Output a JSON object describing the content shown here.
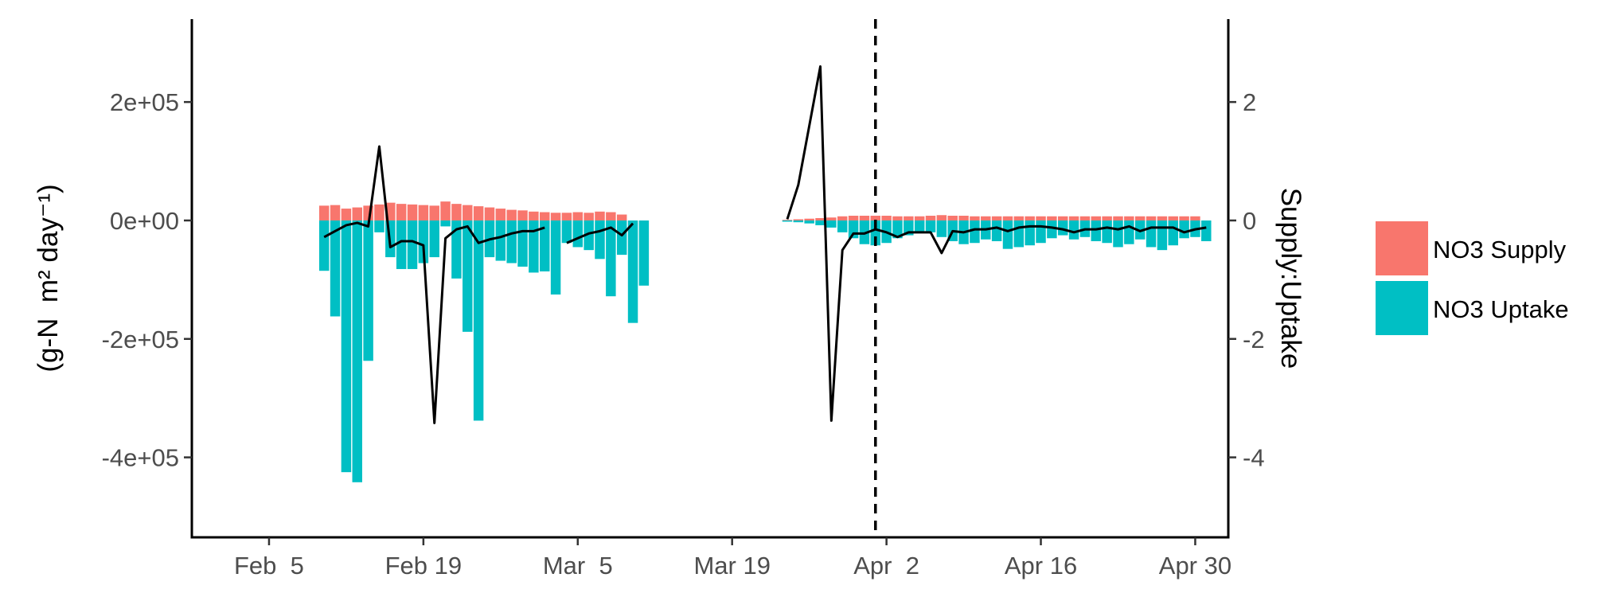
{
  "chart_data": {
    "type": "bar",
    "title": "",
    "ylabel_left": "(g-N  m² day⁻¹)",
    "ylabel_right": "Supply:Uptake",
    "x_axis": {
      "kind": "date",
      "year": 2025,
      "range": [
        "2025-01-29",
        "2025-05-03"
      ],
      "ticks": [
        {
          "date": "2025-02-05",
          "label": "Feb  5"
        },
        {
          "date": "2025-02-19",
          "label": "Feb 19"
        },
        {
          "date": "2025-03-05",
          "label": "Mar  5"
        },
        {
          "date": "2025-03-19",
          "label": "Mar 19"
        },
        {
          "date": "2025-04-02",
          "label": "Apr  2"
        },
        {
          "date": "2025-04-16",
          "label": "Apr 16"
        },
        {
          "date": "2025-04-30",
          "label": "Apr 30"
        }
      ]
    },
    "y_left": {
      "range": [
        -535000,
        340000
      ],
      "ticks": [
        {
          "value": 200000,
          "label": "2e+05"
        },
        {
          "value": 0,
          "label": "0e+00"
        },
        {
          "value": -200000,
          "label": "-2e+05"
        },
        {
          "value": -400000,
          "label": "-4e+05"
        }
      ]
    },
    "y_right": {
      "range": [
        -5.35,
        3.4
      ],
      "ticks": [
        {
          "value": 2,
          "label": "2"
        },
        {
          "value": 0,
          "label": "0"
        },
        {
          "value": -2,
          "label": "-2"
        },
        {
          "value": -4,
          "label": "-4"
        }
      ]
    },
    "vline_date": "2025-04-01",
    "grid": false,
    "legend": {
      "position": "right"
    },
    "series": [
      {
        "name": "NO3 Supply",
        "color": "#F8766D",
        "axis": "left",
        "kind": "bar",
        "points": [
          {
            "x": "2025-02-10",
            "y": 25000
          },
          {
            "x": "2025-02-11",
            "y": 26000
          },
          {
            "x": "2025-02-12",
            "y": 20000
          },
          {
            "x": "2025-02-13",
            "y": 22000
          },
          {
            "x": "2025-02-14",
            "y": 25000
          },
          {
            "x": "2025-02-15",
            "y": 27000
          },
          {
            "x": "2025-02-16",
            "y": 30000
          },
          {
            "x": "2025-02-17",
            "y": 28000
          },
          {
            "x": "2025-02-18",
            "y": 27000
          },
          {
            "x": "2025-02-19",
            "y": 26000
          },
          {
            "x": "2025-02-20",
            "y": 25000
          },
          {
            "x": "2025-02-21",
            "y": 32000
          },
          {
            "x": "2025-02-22",
            "y": 28000
          },
          {
            "x": "2025-02-23",
            "y": 26000
          },
          {
            "x": "2025-02-24",
            "y": 24000
          },
          {
            "x": "2025-02-25",
            "y": 22000
          },
          {
            "x": "2025-02-26",
            "y": 20000
          },
          {
            "x": "2025-02-27",
            "y": 18000
          },
          {
            "x": "2025-02-28",
            "y": 17000
          },
          {
            "x": "2025-03-01",
            "y": 15000
          },
          {
            "x": "2025-03-02",
            "y": 14000
          },
          {
            "x": "2025-03-03",
            "y": 13000
          },
          {
            "x": "2025-03-04",
            "y": 13000
          },
          {
            "x": "2025-03-05",
            "y": 14000
          },
          {
            "x": "2025-03-06",
            "y": 13000
          },
          {
            "x": "2025-03-07",
            "y": 15000
          },
          {
            "x": "2025-03-08",
            "y": 14000
          },
          {
            "x": "2025-03-09",
            "y": 10000
          },
          {
            "x": "2025-03-24",
            "y": 1000
          },
          {
            "x": "2025-03-25",
            "y": 2000
          },
          {
            "x": "2025-03-26",
            "y": 3000
          },
          {
            "x": "2025-03-27",
            "y": 4000
          },
          {
            "x": "2025-03-28",
            "y": 5000
          },
          {
            "x": "2025-03-29",
            "y": 7000
          },
          {
            "x": "2025-03-30",
            "y": 8000
          },
          {
            "x": "2025-03-31",
            "y": 8000
          },
          {
            "x": "2025-04-01",
            "y": 8000
          },
          {
            "x": "2025-04-02",
            "y": 8000
          },
          {
            "x": "2025-04-03",
            "y": 7000
          },
          {
            "x": "2025-04-04",
            "y": 7000
          },
          {
            "x": "2025-04-05",
            "y": 7000
          },
          {
            "x": "2025-04-06",
            "y": 8000
          },
          {
            "x": "2025-04-07",
            "y": 9000
          },
          {
            "x": "2025-04-08",
            "y": 8000
          },
          {
            "x": "2025-04-09",
            "y": 8000
          },
          {
            "x": "2025-04-10",
            "y": 7000
          },
          {
            "x": "2025-04-11",
            "y": 7000
          },
          {
            "x": "2025-04-12",
            "y": 7000
          },
          {
            "x": "2025-04-13",
            "y": 7000
          },
          {
            "x": "2025-04-14",
            "y": 7000
          },
          {
            "x": "2025-04-15",
            "y": 7000
          },
          {
            "x": "2025-04-16",
            "y": 7000
          },
          {
            "x": "2025-04-17",
            "y": 7000
          },
          {
            "x": "2025-04-18",
            "y": 7000
          },
          {
            "x": "2025-04-19",
            "y": 7000
          },
          {
            "x": "2025-04-20",
            "y": 7000
          },
          {
            "x": "2025-04-21",
            "y": 7000
          },
          {
            "x": "2025-04-22",
            "y": 7000
          },
          {
            "x": "2025-04-23",
            "y": 7000
          },
          {
            "x": "2025-04-24",
            "y": 7000
          },
          {
            "x": "2025-04-25",
            "y": 7000
          },
          {
            "x": "2025-04-26",
            "y": 7000
          },
          {
            "x": "2025-04-27",
            "y": 7000
          },
          {
            "x": "2025-04-28",
            "y": 7000
          },
          {
            "x": "2025-04-29",
            "y": 7000
          },
          {
            "x": "2025-04-30",
            "y": 7000
          }
        ]
      },
      {
        "name": "NO3 Uptake",
        "color": "#00BFC4",
        "axis": "left",
        "kind": "bar",
        "points": [
          {
            "x": "2025-02-10",
            "y": -85000
          },
          {
            "x": "2025-02-11",
            "y": -162000
          },
          {
            "x": "2025-02-12",
            "y": -425000
          },
          {
            "x": "2025-02-13",
            "y": -442000
          },
          {
            "x": "2025-02-14",
            "y": -237000
          },
          {
            "x": "2025-02-15",
            "y": -20000
          },
          {
            "x": "2025-02-16",
            "y": -62000
          },
          {
            "x": "2025-02-17",
            "y": -82000
          },
          {
            "x": "2025-02-18",
            "y": -82000
          },
          {
            "x": "2025-02-19",
            "y": -72000
          },
          {
            "x": "2025-02-20",
            "y": -62000
          },
          {
            "x": "2025-02-21",
            "y": -10000
          },
          {
            "x": "2025-02-22",
            "y": -98000
          },
          {
            "x": "2025-02-23",
            "y": -188000
          },
          {
            "x": "2025-02-24",
            "y": -338000
          },
          {
            "x": "2025-02-25",
            "y": -62000
          },
          {
            "x": "2025-02-26",
            "y": -68000
          },
          {
            "x": "2025-02-27",
            "y": -72000
          },
          {
            "x": "2025-02-28",
            "y": -78000
          },
          {
            "x": "2025-03-01",
            "y": -88000
          },
          {
            "x": "2025-03-02",
            "y": -86000
          },
          {
            "x": "2025-03-03",
            "y": -125000
          },
          {
            "x": "2025-03-04",
            "y": -38000
          },
          {
            "x": "2025-03-05",
            "y": -45000
          },
          {
            "x": "2025-03-06",
            "y": -50000
          },
          {
            "x": "2025-03-07",
            "y": -65000
          },
          {
            "x": "2025-03-08",
            "y": -128000
          },
          {
            "x": "2025-03-09",
            "y": -58000
          },
          {
            "x": "2025-03-10",
            "y": -173000
          },
          {
            "x": "2025-03-11",
            "y": -110000
          },
          {
            "x": "2025-03-24",
            "y": -2000
          },
          {
            "x": "2025-03-25",
            "y": -3000
          },
          {
            "x": "2025-03-26",
            "y": -5000
          },
          {
            "x": "2025-03-27",
            "y": -8000
          },
          {
            "x": "2025-03-28",
            "y": -12000
          },
          {
            "x": "2025-03-29",
            "y": -20000
          },
          {
            "x": "2025-03-30",
            "y": -30000
          },
          {
            "x": "2025-03-31",
            "y": -40000
          },
          {
            "x": "2025-04-01",
            "y": -42000
          },
          {
            "x": "2025-04-02",
            "y": -38000
          },
          {
            "x": "2025-04-03",
            "y": -30000
          },
          {
            "x": "2025-04-04",
            "y": -25000
          },
          {
            "x": "2025-04-05",
            "y": -20000
          },
          {
            "x": "2025-04-06",
            "y": -20000
          },
          {
            "x": "2025-04-07",
            "y": -28000
          },
          {
            "x": "2025-04-08",
            "y": -35000
          },
          {
            "x": "2025-04-09",
            "y": -40000
          },
          {
            "x": "2025-04-10",
            "y": -38000
          },
          {
            "x": "2025-04-11",
            "y": -32000
          },
          {
            "x": "2025-04-12",
            "y": -35000
          },
          {
            "x": "2025-04-13",
            "y": -48000
          },
          {
            "x": "2025-04-14",
            "y": -45000
          },
          {
            "x": "2025-04-15",
            "y": -42000
          },
          {
            "x": "2025-04-16",
            "y": -38000
          },
          {
            "x": "2025-04-17",
            "y": -30000
          },
          {
            "x": "2025-04-18",
            "y": -25000
          },
          {
            "x": "2025-04-19",
            "y": -32000
          },
          {
            "x": "2025-04-20",
            "y": -28000
          },
          {
            "x": "2025-04-21",
            "y": -35000
          },
          {
            "x": "2025-04-22",
            "y": -38000
          },
          {
            "x": "2025-04-23",
            "y": -45000
          },
          {
            "x": "2025-04-24",
            "y": -40000
          },
          {
            "x": "2025-04-25",
            "y": -32000
          },
          {
            "x": "2025-04-26",
            "y": -45000
          },
          {
            "x": "2025-04-27",
            "y": -50000
          },
          {
            "x": "2025-04-28",
            "y": -42000
          },
          {
            "x": "2025-04-29",
            "y": -30000
          },
          {
            "x": "2025-04-30",
            "y": -28000
          },
          {
            "x": "2025-05-01",
            "y": -35000
          }
        ]
      },
      {
        "kind": "line",
        "color": "#000000",
        "axis": "right",
        "segments": [
          [
            {
              "x": "2025-02-10",
              "y": -0.28
            },
            {
              "x": "2025-02-11",
              "y": -0.18
            },
            {
              "x": "2025-02-12",
              "y": -0.08
            },
            {
              "x": "2025-02-13",
              "y": -0.04
            },
            {
              "x": "2025-02-14",
              "y": -0.1
            },
            {
              "x": "2025-02-15",
              "y": 1.25
            },
            {
              "x": "2025-02-16",
              "y": -0.45
            },
            {
              "x": "2025-02-17",
              "y": -0.35
            },
            {
              "x": "2025-02-18",
              "y": -0.35
            },
            {
              "x": "2025-02-19",
              "y": -0.42
            },
            {
              "x": "2025-02-20",
              "y": -3.42
            },
            {
              "x": "2025-02-21",
              "y": -0.3
            },
            {
              "x": "2025-02-22",
              "y": -0.15
            },
            {
              "x": "2025-02-23",
              "y": -0.1
            },
            {
              "x": "2025-02-24",
              "y": -0.38
            },
            {
              "x": "2025-02-25",
              "y": -0.32
            },
            {
              "x": "2025-02-26",
              "y": -0.28
            },
            {
              "x": "2025-02-27",
              "y": -0.22
            },
            {
              "x": "2025-02-28",
              "y": -0.18
            },
            {
              "x": "2025-03-01",
              "y": -0.18
            },
            {
              "x": "2025-03-02",
              "y": -0.12
            }
          ],
          [
            {
              "x": "2025-03-04",
              "y": -0.38
            },
            {
              "x": "2025-03-05",
              "y": -0.3
            },
            {
              "x": "2025-03-06",
              "y": -0.22
            },
            {
              "x": "2025-03-07",
              "y": -0.18
            },
            {
              "x": "2025-03-08",
              "y": -0.12
            },
            {
              "x": "2025-03-09",
              "y": -0.25
            },
            {
              "x": "2025-03-10",
              "y": -0.05
            }
          ],
          [
            {
              "x": "2025-03-24",
              "y": 0.02
            },
            {
              "x": "2025-03-25",
              "y": 0.6
            },
            {
              "x": "2025-03-26",
              "y": 1.6
            },
            {
              "x": "2025-03-27",
              "y": 2.6
            },
            {
              "x": "2025-03-28",
              "y": -3.38
            },
            {
              "x": "2025-03-29",
              "y": -0.5
            },
            {
              "x": "2025-03-30",
              "y": -0.22
            },
            {
              "x": "2025-03-31",
              "y": -0.22
            },
            {
              "x": "2025-04-01",
              "y": -0.15
            },
            {
              "x": "2025-04-02",
              "y": -0.2
            },
            {
              "x": "2025-04-03",
              "y": -0.28
            },
            {
              "x": "2025-04-04",
              "y": -0.2
            },
            {
              "x": "2025-04-05",
              "y": -0.2
            },
            {
              "x": "2025-04-06",
              "y": -0.2
            },
            {
              "x": "2025-04-07",
              "y": -0.55
            },
            {
              "x": "2025-04-08",
              "y": -0.18
            },
            {
              "x": "2025-04-09",
              "y": -0.2
            },
            {
              "x": "2025-04-10",
              "y": -0.15
            },
            {
              "x": "2025-04-11",
              "y": -0.15
            },
            {
              "x": "2025-04-12",
              "y": -0.12
            },
            {
              "x": "2025-04-13",
              "y": -0.18
            },
            {
              "x": "2025-04-14",
              "y": -0.12
            },
            {
              "x": "2025-04-15",
              "y": -0.1
            },
            {
              "x": "2025-04-16",
              "y": -0.1
            },
            {
              "x": "2025-04-17",
              "y": -0.12
            },
            {
              "x": "2025-04-18",
              "y": -0.15
            },
            {
              "x": "2025-04-19",
              "y": -0.2
            },
            {
              "x": "2025-04-20",
              "y": -0.15
            },
            {
              "x": "2025-04-21",
              "y": -0.15
            },
            {
              "x": "2025-04-22",
              "y": -0.12
            },
            {
              "x": "2025-04-23",
              "y": -0.15
            },
            {
              "x": "2025-04-24",
              "y": -0.1
            },
            {
              "x": "2025-04-25",
              "y": -0.18
            },
            {
              "x": "2025-04-26",
              "y": -0.12
            },
            {
              "x": "2025-04-27",
              "y": -0.12
            },
            {
              "x": "2025-04-28",
              "y": -0.12
            },
            {
              "x": "2025-04-29",
              "y": -0.2
            },
            {
              "x": "2025-04-30",
              "y": -0.15
            },
            {
              "x": "2025-05-01",
              "y": -0.12
            }
          ]
        ]
      }
    ]
  }
}
